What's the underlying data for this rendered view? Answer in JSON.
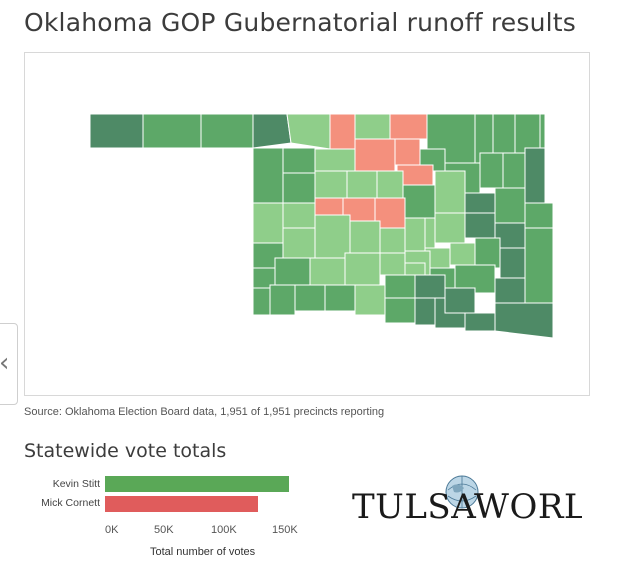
{
  "title": "Oklahoma GOP Gubernatorial runoff results",
  "source": "Source: Oklahoma Election Board data, 1,951 of 1,951 precincts reporting",
  "subtitle": "Statewide vote totals",
  "colors": {
    "stitt_strong": "#4e8a66",
    "stitt_medium": "#5da868",
    "stitt_light": "#8fce8a",
    "cornett": "#f4907d",
    "bar_stitt": "#5aa857",
    "bar_cornett": "#e05c5c"
  },
  "map_legend_meaning": {
    "green": "Kevin Stitt",
    "red": "Mick Cornett"
  },
  "chart_data": {
    "type": "bar",
    "orientation": "horizontal",
    "categories": [
      "Kevin Stitt",
      "Mick Cornett"
    ],
    "values": [
      164000,
      137000
    ],
    "xlabel": "Total number of votes",
    "xticks": [
      "0K",
      "50K",
      "100K",
      "150K"
    ],
    "xlim": [
      0,
      170000
    ],
    "colors": [
      "#5aa857",
      "#e05c5c"
    ]
  },
  "logo": {
    "text": "TULSA WORLD"
  },
  "nav": {
    "prev_glyph": "‹"
  }
}
